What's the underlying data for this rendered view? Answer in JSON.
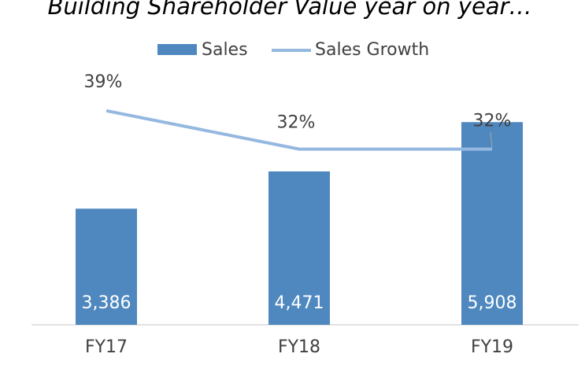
{
  "chart_data": {
    "type": "bar_line",
    "title": "Building Shareholder Value year on year…",
    "categories": [
      "FY17",
      "FY18",
      "FY19"
    ],
    "ylim": [
      0,
      8000
    ],
    "y2lim": [
      0,
      50
    ],
    "legend": "top",
    "series": [
      {
        "name": "Sales",
        "type": "bar",
        "color": "#4f88bf",
        "values": [
          3386,
          4471,
          5908
        ],
        "value_labels": [
          "3,386",
          "4,471",
          "5,908"
        ]
      },
      {
        "name": "Sales Growth",
        "type": "line",
        "axis": "y2",
        "color": "#95b8e0",
        "values": [
          39,
          32,
          32
        ],
        "value_labels": [
          "39%",
          "32%",
          "32%"
        ]
      }
    ]
  }
}
